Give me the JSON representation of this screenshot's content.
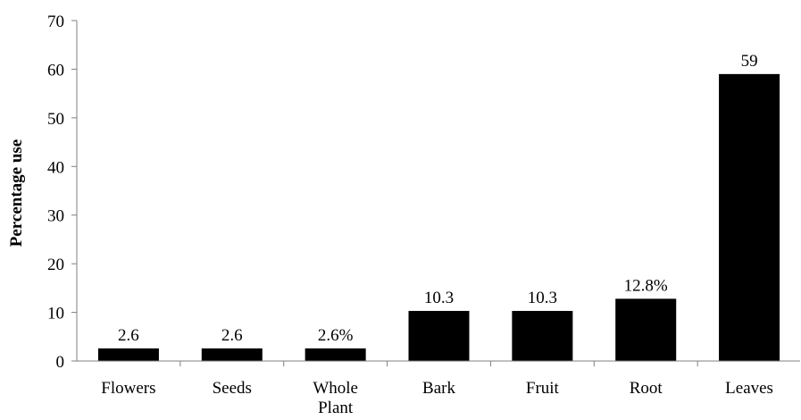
{
  "chart_data": {
    "type": "bar",
    "categories": [
      "Flowers",
      "Seeds",
      "Whole Plant",
      "Bark",
      "Fruit",
      "Root",
      "Leaves"
    ],
    "category_lines": [
      [
        "Flowers"
      ],
      [
        "Seeds"
      ],
      [
        "Whole",
        "Plant"
      ],
      [
        "Bark"
      ],
      [
        "Fruit"
      ],
      [
        "Root"
      ],
      [
        "Leaves"
      ]
    ],
    "values": [
      2.6,
      2.6,
      2.6,
      10.3,
      10.3,
      12.8,
      59
    ],
    "data_labels": [
      "2.6",
      "2.6",
      "2.6%",
      "10.3",
      "10.3",
      "12.8%",
      "59"
    ],
    "ylabel": "Percentage use",
    "ylim": [
      0,
      70
    ],
    "yticks": [
      0,
      10,
      20,
      30,
      40,
      50,
      60,
      70
    ],
    "grid": false,
    "bar_color": "#000000"
  }
}
